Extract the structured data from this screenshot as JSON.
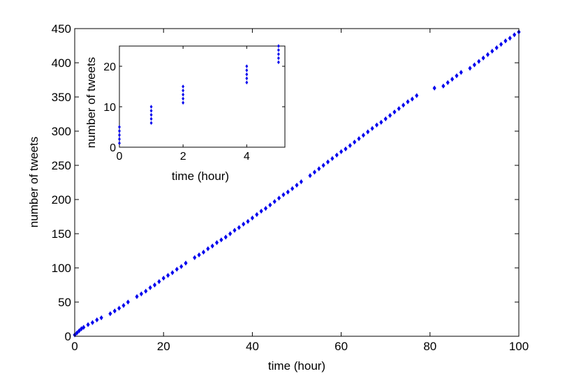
{
  "chart_data": [
    {
      "type": "scatter",
      "title": "",
      "xlabel": "time (hour)",
      "ylabel": "number of tweets",
      "xlim": [
        0,
        100
      ],
      "ylim": [
        0,
        450
      ],
      "xticks": [
        "0",
        "20",
        "40",
        "60",
        "80",
        "100"
      ],
      "yticks": [
        "0",
        "50",
        "100",
        "150",
        "200",
        "250",
        "300",
        "350",
        "400",
        "450"
      ],
      "grid": false,
      "marker_color": "#0000ee",
      "series": [
        {
          "x": [
            0,
            0.5,
            1,
            1.5,
            2,
            3,
            4,
            5,
            6,
            8,
            9,
            10,
            11,
            12,
            14,
            15,
            16,
            17,
            18,
            19,
            20,
            21,
            22,
            23,
            24,
            25,
            27,
            28,
            29,
            30,
            31,
            32,
            33,
            34,
            35,
            36,
            37,
            38,
            39,
            40,
            41,
            42,
            43,
            44,
            45,
            46,
            47,
            48,
            49,
            50,
            51,
            53,
            54,
            55,
            56,
            57,
            58,
            59,
            60,
            61,
            62,
            63,
            64,
            65,
            66,
            67,
            68,
            69,
            70,
            71,
            72,
            73,
            74,
            75,
            76,
            77,
            81,
            83,
            84,
            85,
            86,
            87,
            89,
            90,
            91,
            92,
            93,
            94,
            95,
            96,
            97,
            98,
            99,
            100
          ],
          "y": [
            2,
            5,
            8,
            11,
            13,
            17,
            20,
            24,
            27,
            33,
            37,
            41,
            45,
            50,
            58,
            62,
            66,
            71,
            75,
            80,
            85,
            89,
            93,
            98,
            102,
            107,
            115,
            119,
            123,
            128,
            132,
            137,
            141,
            145,
            150,
            155,
            159,
            164,
            168,
            173,
            178,
            183,
            187,
            192,
            197,
            202,
            207,
            211,
            216,
            221,
            226,
            235,
            240,
            245,
            250,
            255,
            260,
            265,
            270,
            274,
            279,
            284,
            289,
            294,
            299,
            304,
            309,
            313,
            318,
            323,
            328,
            333,
            338,
            343,
            347,
            352,
            363,
            366,
            371,
            376,
            381,
            386,
            392,
            397,
            402,
            407,
            412,
            417,
            422,
            427,
            432,
            436,
            441,
            445
          ]
        }
      ]
    },
    {
      "type": "scatter",
      "title": "",
      "xlabel": "time (hour)",
      "ylabel": "number of tweets",
      "xlim": [
        0,
        5.2
      ],
      "ylim": [
        0,
        25
      ],
      "xticks": [
        "0",
        "2",
        "4"
      ],
      "yticks": [
        "0",
        "10",
        "20"
      ],
      "grid": false,
      "marker_color": "#0000ee",
      "series": [
        {
          "x": [
            0,
            0,
            0,
            0,
            0,
            1,
            1,
            1,
            1,
            1,
            2,
            2,
            2,
            2,
            2,
            4,
            4,
            4,
            4,
            4,
            5,
            5,
            5,
            5,
            5
          ],
          "y": [
            1,
            2,
            3,
            4,
            5,
            6,
            7,
            8,
            9,
            10,
            11,
            12,
            13,
            14,
            15,
            16,
            17,
            18,
            19,
            20,
            21,
            22,
            23,
            24,
            25
          ]
        }
      ]
    }
  ]
}
